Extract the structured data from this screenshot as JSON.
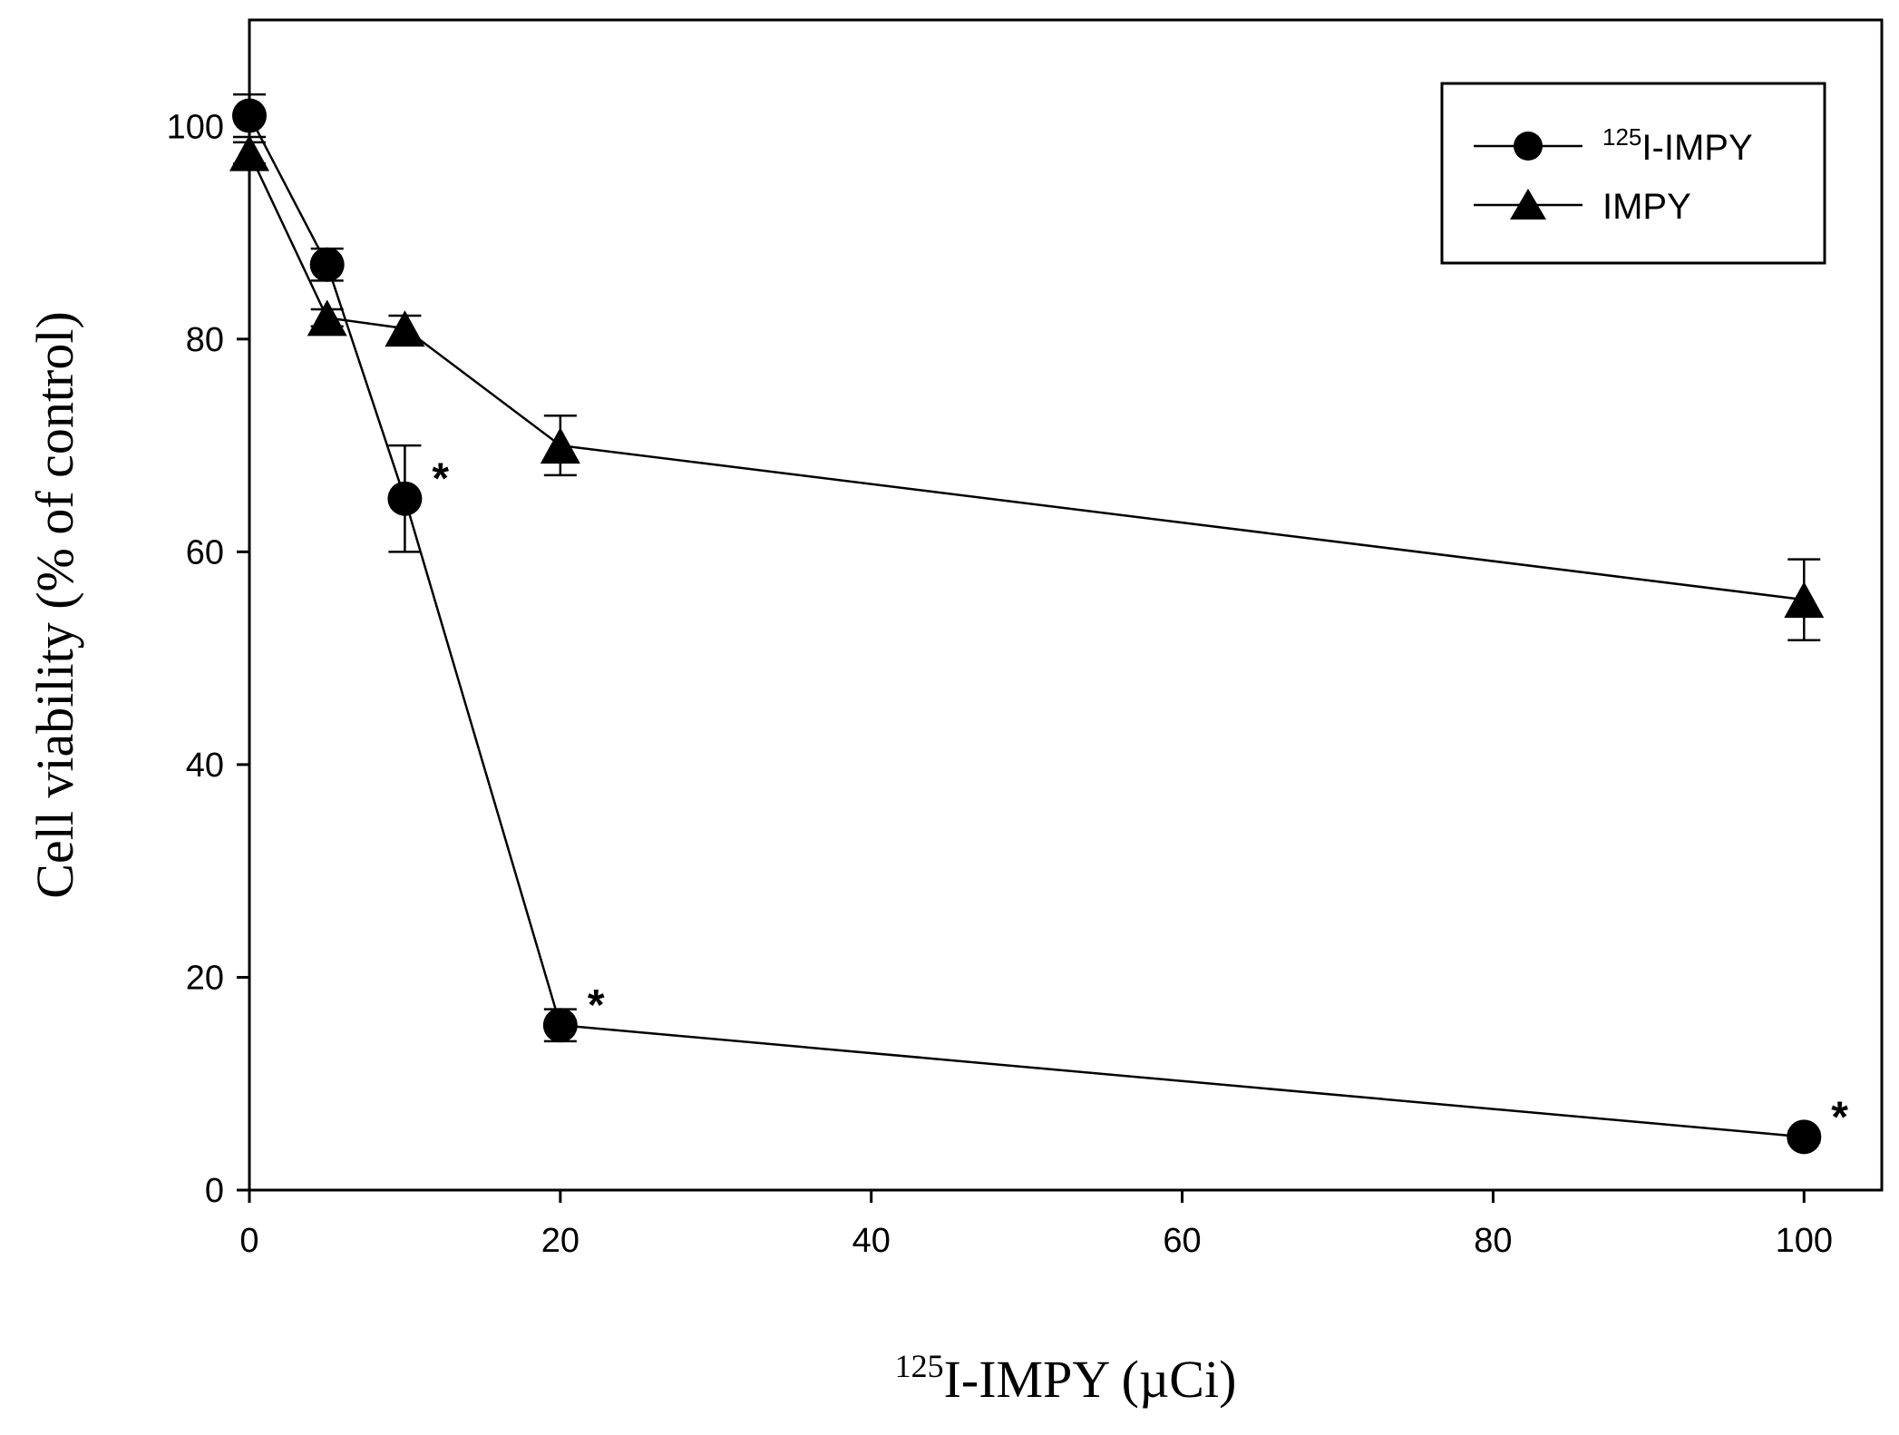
{
  "chart_data": {
    "type": "line",
    "title": "",
    "xlabel_prefix": "125",
    "xlabel_main": "I-IMPY (µCi)",
    "ylabel": "Cell viability (% of control)",
    "xlim": [
      0,
      105
    ],
    "ylim": [
      0,
      110
    ],
    "x_ticks": [
      0,
      20,
      40,
      60,
      80,
      100
    ],
    "y_ticks": [
      0,
      20,
      40,
      60,
      80,
      100
    ],
    "grid": false,
    "legend_position": "top-right",
    "series": [
      {
        "name_sup": "125",
        "name_main": "I-IMPY",
        "marker": "circle",
        "x": [
          0,
          5,
          10,
          20,
          100
        ],
        "y": [
          101,
          87,
          65,
          15.5,
          5
        ],
        "err": [
          2,
          1.5,
          5,
          1.5,
          0.5
        ],
        "significant": [
          false,
          false,
          true,
          true,
          true
        ]
      },
      {
        "name_main": "IMPY",
        "marker": "triangle",
        "x": [
          0,
          5,
          10,
          20,
          100
        ],
        "y": [
          97.5,
          82,
          81,
          70,
          55.5
        ],
        "err": [
          1,
          0.8,
          1.2,
          2.8,
          3.8
        ],
        "significant": [
          false,
          false,
          false,
          false,
          false
        ]
      }
    ],
    "annotation_symbol": "*"
  }
}
